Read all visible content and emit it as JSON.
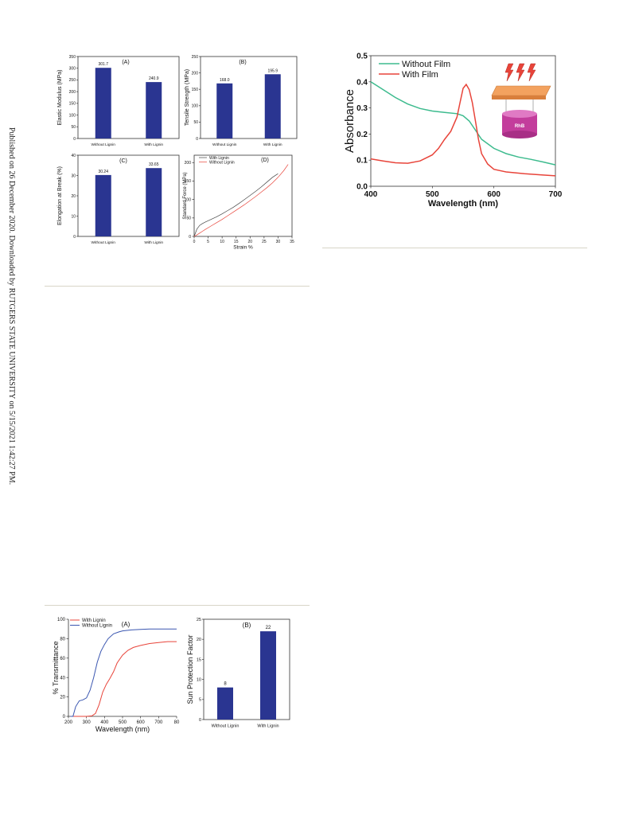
{
  "side_note": "Published on 26 December 2020. Downloaded by RUTGERS STATE UNIVERSITY on 5/15/2021 1:42:27 PM.",
  "colors": {
    "bar": "#2a3591",
    "red": "#e8443a",
    "blue": "#3a56b0",
    "green": "#3dbb8e",
    "dark": "#444444"
  },
  "icons": {
    "lightning": "lightning-bolt-icon",
    "film": "film-plate-icon",
    "beaker": "beaker-icon"
  },
  "chart_data": [
    {
      "type": "bar",
      "panel": "(A)",
      "categories": [
        "Without Lignin",
        "With Lignin"
      ],
      "values": [
        301.7,
        240.9
      ],
      "value_labels": [
        "301.7",
        "240.9"
      ],
      "ylabel": "Elastic Modulus (MPa)",
      "ylim": [
        0,
        350
      ],
      "yticks": [
        "0",
        "50",
        "100",
        "150",
        "200",
        "250",
        "300",
        "350"
      ]
    },
    {
      "type": "bar",
      "panel": "(B)",
      "categories": [
        "Without Lignin",
        "With Lignin"
      ],
      "values": [
        168.0,
        195.9
      ],
      "value_labels": [
        "168.0",
        "195.9"
      ],
      "ylabel": "Tensile Strength (MPa)",
      "ylim": [
        0,
        250
      ],
      "yticks": [
        "0",
        "50",
        "100",
        "150",
        "200",
        "250"
      ]
    },
    {
      "type": "bar",
      "panel": "(C)",
      "categories": [
        "Without Lignin",
        "With Lignin"
      ],
      "values": [
        30.24,
        33.65
      ],
      "value_labels": [
        "30.24",
        "33.65"
      ],
      "ylabel": "Elongation at Break (%)",
      "ylim": [
        0,
        40
      ],
      "yticks": [
        "0",
        "10",
        "20",
        "30",
        "40"
      ]
    },
    {
      "type": "line",
      "panel": "(D)",
      "xlabel": "Strain %",
      "ylabel": "Standard Force (MPa)",
      "xlim": [
        0,
        35
      ],
      "ylim": [
        0,
        220
      ],
      "xticks": [
        "0",
        "5",
        "10",
        "15",
        "20",
        "25",
        "30",
        "35"
      ],
      "yticks": [
        "0",
        "50",
        "100",
        "150",
        "200"
      ],
      "legend_position": "top-left",
      "series": [
        {
          "name": "With Lignin",
          "color_key": "dark",
          "x": [
            0,
            1,
            2,
            3,
            4,
            6,
            8,
            10,
            12,
            14,
            16,
            18,
            20,
            22,
            24,
            26,
            28,
            30
          ],
          "y": [
            0,
            20,
            30,
            35,
            39,
            46,
            53,
            61,
            70,
            79,
            89,
            100,
            111,
            122,
            134,
            147,
            160,
            170
          ]
        },
        {
          "name": "Without Lignin",
          "color_key": "red",
          "x": [
            0,
            1,
            2,
            3,
            4,
            6,
            8,
            10,
            12,
            14,
            16,
            18,
            20,
            22,
            24,
            26,
            28,
            30,
            32,
            33.6
          ],
          "y": [
            0,
            4,
            9,
            14,
            19,
            28,
            37,
            46,
            56,
            66,
            76,
            86,
            97,
            108,
            120,
            132,
            145,
            160,
            178,
            195
          ]
        }
      ]
    },
    {
      "type": "line",
      "panel": "",
      "xlabel": "Wavelength (nm)",
      "ylabel": "Absorbance",
      "xlim": [
        400,
        700
      ],
      "ylim": [
        0.0,
        0.5
      ],
      "xticks": [
        "400",
        "500",
        "600",
        "700"
      ],
      "yticks": [
        "0.0",
        "0.1",
        "0.2",
        "0.3",
        "0.4",
        "0.5"
      ],
      "legend_position": "top-left",
      "inset_label": "RhB",
      "series": [
        {
          "name": "Without Film",
          "color_key": "green",
          "x": [
            400,
            420,
            440,
            460,
            480,
            500,
            520,
            540,
            550,
            560,
            570,
            580,
            600,
            620,
            640,
            660,
            680,
            700
          ],
          "y": [
            0.4,
            0.37,
            0.34,
            0.315,
            0.298,
            0.288,
            0.283,
            0.278,
            0.27,
            0.25,
            0.215,
            0.18,
            0.145,
            0.125,
            0.112,
            0.103,
            0.093,
            0.082
          ]
        },
        {
          "name": "With Film",
          "color_key": "red",
          "x": [
            400,
            420,
            440,
            460,
            480,
            500,
            510,
            520,
            530,
            540,
            545,
            550,
            555,
            560,
            565,
            570,
            575,
            580,
            590,
            600,
            620,
            650,
            680,
            700
          ],
          "y": [
            0.105,
            0.097,
            0.09,
            0.088,
            0.097,
            0.12,
            0.145,
            0.18,
            0.21,
            0.265,
            0.32,
            0.375,
            0.39,
            0.37,
            0.32,
            0.25,
            0.18,
            0.125,
            0.085,
            0.065,
            0.055,
            0.048,
            0.043,
            0.04
          ]
        }
      ]
    },
    {
      "type": "line",
      "panel": "(A)",
      "xlabel": "Wavelength (nm)",
      "ylabel": "% Transmittance",
      "xlim": [
        200,
        800
      ],
      "ylim": [
        0,
        100
      ],
      "xticks": [
        "200",
        "300",
        "400",
        "500",
        "600",
        "700",
        "80"
      ],
      "yticks": [
        "0",
        "20",
        "40",
        "60",
        "80",
        "100"
      ],
      "legend_position": "top-left",
      "series": [
        {
          "name": "With Lignin",
          "color_key": "red",
          "x": [
            210,
            250,
            300,
            330,
            350,
            370,
            390,
            410,
            430,
            450,
            470,
            500,
            530,
            560,
            600,
            650,
            700,
            750,
            800
          ],
          "y": [
            0,
            0,
            0,
            0.5,
            3,
            12,
            25,
            33,
            39,
            46,
            55,
            63,
            68,
            71,
            73,
            75,
            76,
            77,
            77
          ]
        },
        {
          "name": "Without Lignin",
          "color_key": "blue",
          "x": [
            210,
            225,
            240,
            260,
            280,
            300,
            320,
            340,
            360,
            380,
            400,
            420,
            450,
            480,
            500,
            550,
            600,
            650,
            700,
            750,
            800
          ],
          "y": [
            0,
            0,
            10,
            16,
            17,
            19,
            27,
            40,
            56,
            67,
            74,
            80,
            85,
            87,
            88,
            89,
            89.5,
            90,
            90,
            90,
            90
          ]
        }
      ]
    },
    {
      "type": "bar",
      "panel": "(B)",
      "categories": [
        "Without Lignin",
        "With Lignin"
      ],
      "values": [
        8,
        22
      ],
      "value_labels": [
        "8",
        "22"
      ],
      "ylabel": "Sun Protection Factor",
      "ylim": [
        0,
        25
      ],
      "yticks": [
        "0",
        "5",
        "10",
        "15",
        "20",
        "25"
      ]
    }
  ]
}
